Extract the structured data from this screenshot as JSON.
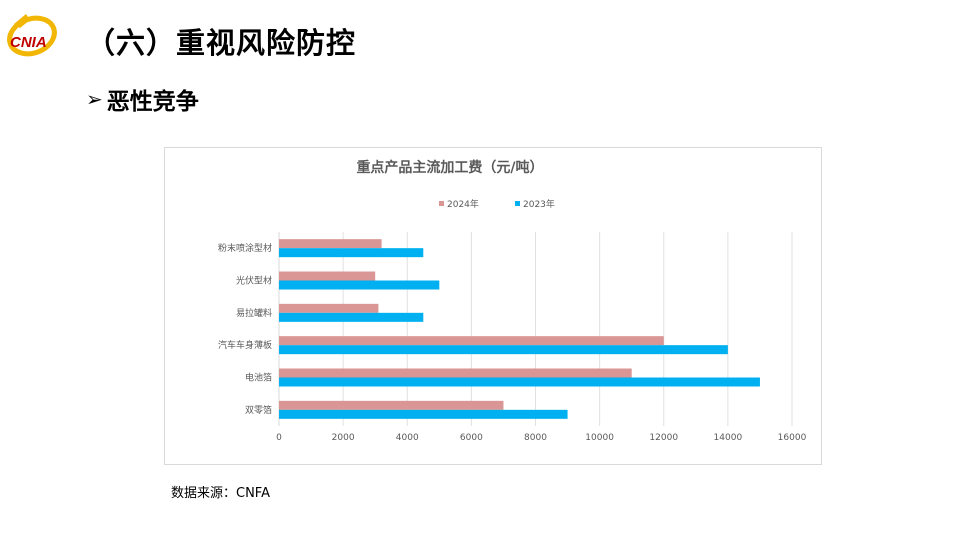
{
  "header": {
    "logo_text": "CNIA",
    "title": "（六）重视风险防控",
    "section": "恶性竞争"
  },
  "chart_data": {
    "type": "bar",
    "orientation": "horizontal",
    "title": "重点产品主流加工费（元/吨）",
    "categories": [
      "粉末喷涂型材",
      "光伏型材",
      "易拉罐料",
      "汽车车身薄板",
      "电池箔",
      "双零箔"
    ],
    "series": [
      {
        "name": "2024年",
        "color": "#d99694",
        "values": [
          3200,
          3000,
          3100,
          12000,
          11000,
          7000
        ]
      },
      {
        "name": "2023年",
        "color": "#00b0f0",
        "values": [
          4500,
          5000,
          4500,
          14000,
          15000,
          9000
        ]
      }
    ],
    "xlim": [
      0,
      16000
    ],
    "xticks": [
      0,
      2000,
      4000,
      6000,
      8000,
      10000,
      12000,
      14000,
      16000
    ],
    "grid": true,
    "legend_position": "top"
  },
  "footer": {
    "source": "数据来源：CNFA"
  }
}
